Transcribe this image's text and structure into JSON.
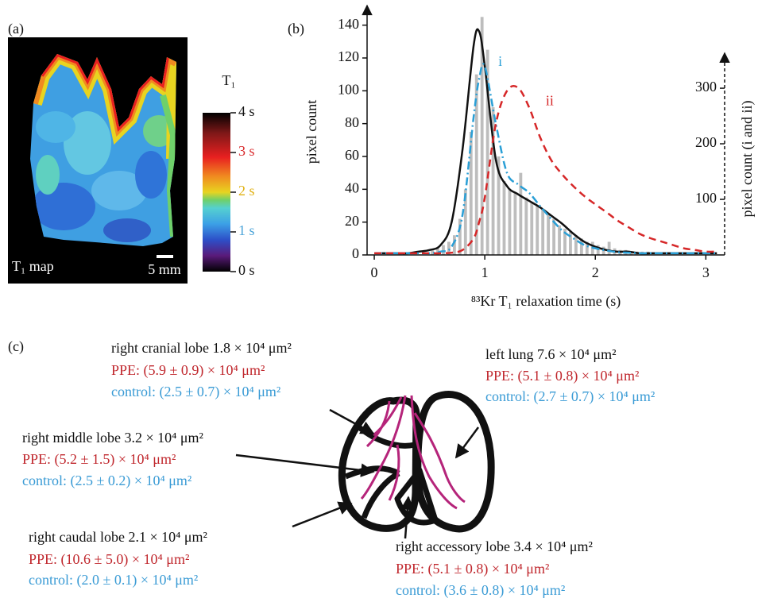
{
  "panel_a": {
    "label": "(a)",
    "map_label": "T₁ map",
    "scale_label": "5 mm",
    "colorbar": {
      "title": "T₁",
      "lim": [
        0,
        4
      ],
      "ticks": [
        {
          "value": 0,
          "label": "0 s"
        },
        {
          "value": 1,
          "label": "1 s"
        },
        {
          "value": 2,
          "label": "2 s"
        },
        {
          "value": 3,
          "label": "3 s"
        },
        {
          "value": 4,
          "label": "4 s"
        }
      ],
      "tick_colors": [
        "#111111",
        "#4aa3d8",
        "#e0b010",
        "#d8282a",
        "#111111"
      ]
    }
  },
  "chart_data": {
    "type": "histogram-lines",
    "label": "(b)",
    "xlabel": "⁸³Kr T₁ relaxation time (s)",
    "ylabel": "pixel count",
    "y2label": "pixel count (i and ii)",
    "xlim": [
      -0.065,
      3.17
    ],
    "xticks": [
      0,
      1,
      2,
      3
    ],
    "ylim": [
      0,
      150
    ],
    "yticks": [
      0,
      20,
      40,
      60,
      80,
      100,
      120,
      140
    ],
    "y2lim": [
      0,
      443
    ],
    "y2ticks": [
      100,
      200,
      300
    ],
    "histogram": {
      "color": "#bdbdbd",
      "bins": [
        0.5,
        0.55,
        0.6,
        0.65,
        0.7,
        0.75,
        0.8,
        0.85,
        0.9,
        0.95,
        1.0,
        1.05,
        1.1,
        1.15,
        1.2,
        1.25,
        1.3,
        1.35,
        1.4,
        1.45,
        1.5,
        1.55,
        1.6,
        1.65,
        1.7,
        1.75,
        1.8,
        1.85,
        1.9,
        1.95,
        2.0,
        2.05,
        2.1,
        2.15,
        2.2,
        2.25,
        2.3,
        2.35,
        2.4,
        2.45,
        2.5
      ],
      "counts": [
        3,
        4,
        6,
        8,
        12,
        22,
        40,
        75,
        110,
        145,
        125,
        90,
        60,
        45,
        40,
        38,
        50,
        35,
        32,
        30,
        28,
        25,
        22,
        18,
        16,
        14,
        12,
        10,
        8,
        8,
        6,
        5,
        8,
        4,
        3,
        3,
        2,
        2,
        2,
        2
      ]
    },
    "x": [
      0,
      0.1,
      0.2,
      0.3,
      0.4,
      0.5,
      0.6,
      0.7,
      0.8,
      0.9,
      0.95,
      1.0,
      1.1,
      1.2,
      1.3,
      1.4,
      1.5,
      1.6,
      1.7,
      1.8,
      1.9,
      2.0,
      2.1,
      2.2,
      2.3,
      2.4,
      2.5,
      2.6,
      2.7,
      2.8,
      2.9,
      3.0,
      3.1
    ],
    "series": [
      {
        "color": "#111111",
        "style": "solid",
        "values": [
          1,
          1,
          1,
          1,
          2,
          3,
          6,
          20,
          65,
          128,
          136,
          115,
          58,
          42,
          37,
          33,
          29,
          24,
          19,
          13,
          8,
          5,
          3,
          2,
          2,
          1,
          1,
          1,
          1,
          1,
          1,
          1,
          1
        ]
      },
      {
        "name": "i",
        "color": "#2a9fd6",
        "style": "dashdot",
        "axis": "y2",
        "values": [
          3,
          3,
          3,
          3,
          3,
          3,
          6,
          15,
          74,
          250,
          318,
          339,
          236,
          148,
          127,
          112,
          88,
          65,
          44,
          30,
          18,
          12,
          8,
          5,
          4,
          3,
          3,
          3,
          3,
          3,
          3,
          3,
          3
        ]
      },
      {
        "name": "ii",
        "color": "#d62728",
        "style": "dashed",
        "axis": "y2",
        "values": [
          3,
          3,
          3,
          3,
          3,
          3,
          3,
          4,
          9,
          30,
          60,
          103,
          236,
          295,
          301,
          266,
          212,
          171,
          145,
          124,
          106,
          91,
          77,
          62,
          50,
          38,
          30,
          24,
          18,
          12,
          9,
          6,
          6
        ]
      }
    ]
  },
  "panel_c": {
    "label": "(c)",
    "regions": [
      {
        "title": "right cranial lobe 1.8 × 10⁴ μm²",
        "ppe": "PPE: (5.9 ± 0.9) × 10⁴ μm²",
        "control": "control: (2.5 ± 0.7) × 10⁴ μm²"
      },
      {
        "title": "right middle lobe 3.2 × 10⁴ μm²",
        "ppe": "PPE: (5.2 ± 1.5) × 10⁴ μm²",
        "control": "control: (2.5 ± 0.2) × 10⁴ μm²"
      },
      {
        "title": "right caudal lobe 2.1 × 10⁴ μm²",
        "ppe": "PPE: (10.6 ± 5.0) × 10⁴ μm²",
        "control": "control: (2.0 ± 0.1) × 10⁴ μm²"
      },
      {
        "title": "left lung 7.6 × 10⁴ μm²",
        "ppe": "PPE: (5.1 ± 0.8) × 10⁴ μm²",
        "control": "control: (2.7 ± 0.7) × 10⁴ μm²"
      },
      {
        "title": "right accessory lobe 3.4 × 10⁴ μm²",
        "ppe": "PPE: (5.1 ± 0.8) × 10⁴ μm²",
        "control": "control: (3.6 ± 0.8) × 10⁴ μm²"
      }
    ]
  }
}
